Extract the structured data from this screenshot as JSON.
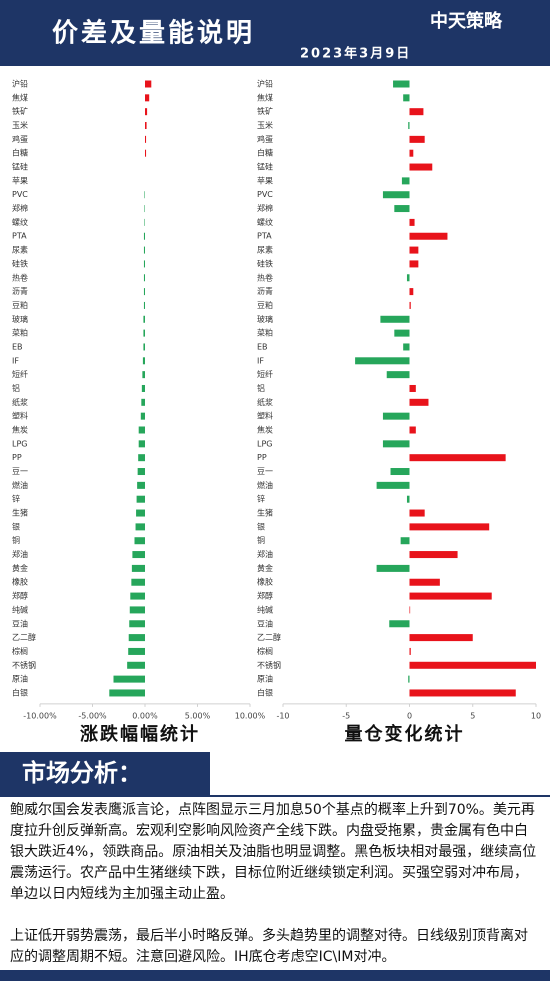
{
  "header": {
    "title": "价差及量能说明",
    "logo": "中天策略",
    "date": "2023年3月9日"
  },
  "chart_data": [
    {
      "type": "bar",
      "orientation": "horizontal",
      "title": "涨跌幅幅统计",
      "categories": [
        "沪铅",
        "焦煤",
        "铁矿",
        "玉米",
        "鸡蛋",
        "白糖",
        "锰硅",
        "苹果",
        "PVC",
        "郑棉",
        "螺纹",
        "PTA",
        "尿素",
        "硅铁",
        "热卷",
        "沥青",
        "豆粕",
        "玻璃",
        "菜粕",
        "EB",
        "IF",
        "短纤",
        "铝",
        "纸浆",
        "塑料",
        "焦炭",
        "LPG",
        "PP",
        "豆一",
        "燃油",
        "锌",
        "生猪",
        "银",
        "铜",
        "郑油",
        "黄金",
        "橡胶",
        "郑醇",
        "纯碱",
        "豆油",
        "乙二醇",
        "棕榈",
        "不锈钢",
        "原油",
        "白银"
      ],
      "values": [
        0.6,
        0.4,
        0.2,
        0.15,
        0.1,
        0.1,
        0,
        0,
        -0.05,
        -0.05,
        -0.05,
        -0.1,
        -0.1,
        -0.1,
        -0.1,
        -0.1,
        -0.1,
        -0.15,
        -0.15,
        -0.15,
        -0.2,
        -0.25,
        -0.3,
        -0.35,
        -0.4,
        -0.6,
        -0.6,
        -0.65,
        -0.7,
        -0.75,
        -0.8,
        -0.85,
        -0.9,
        -1.0,
        -1.2,
        -1.25,
        -1.3,
        -1.4,
        -1.45,
        -1.5,
        -1.55,
        -1.6,
        -1.7,
        -3.0,
        -3.4
      ],
      "positive_color": "#e8131b",
      "negative_color": "#26a65b",
      "xlim": [
        -10,
        10
      ],
      "xticks": [
        {
          "value": -10,
          "label": "-10.00%"
        },
        {
          "value": -5,
          "label": "-5.00%"
        },
        {
          "value": 0,
          "label": "0.00%"
        },
        {
          "value": 5,
          "label": "5.00%"
        },
        {
          "value": 10,
          "label": "10.00%"
        }
      ]
    },
    {
      "type": "bar",
      "orientation": "horizontal",
      "title": "量仓变化统计",
      "categories": [
        "沪铅",
        "焦煤",
        "铁矿",
        "玉米",
        "鸡蛋",
        "白糖",
        "锰硅",
        "苹果",
        "PVC",
        "郑棉",
        "螺纹",
        "PTA",
        "尿素",
        "硅铁",
        "热卷",
        "沥青",
        "豆粕",
        "玻璃",
        "菜粕",
        "EB",
        "IF",
        "短纤",
        "铝",
        "纸浆",
        "塑料",
        "焦炭",
        "LPG",
        "PP",
        "豆一",
        "燃油",
        "锌",
        "生猪",
        "银",
        "铜",
        "郑油",
        "黄金",
        "橡胶",
        "郑醇",
        "纯碱",
        "豆油",
        "乙二醇",
        "棕榈",
        "不锈钢",
        "原油",
        "白银"
      ],
      "values": [
        -1.3,
        -0.5,
        1.1,
        -0.1,
        1.2,
        0.3,
        1.8,
        -0.6,
        -2.1,
        -1.2,
        0.4,
        3.0,
        0.7,
        0.7,
        -0.2,
        0.3,
        0.1,
        -2.3,
        -1.2,
        -0.5,
        -4.3,
        -1.8,
        0.5,
        1.5,
        -2.1,
        0.5,
        -2.1,
        7.6,
        -1.5,
        -2.6,
        -0.2,
        1.2,
        6.3,
        -0.7,
        3.8,
        -2.6,
        2.4,
        6.5,
        0.05,
        -1.6,
        5.0,
        0.1,
        10.0,
        -0.1,
        8.4
      ],
      "positive_color": "#e8131b",
      "negative_color": "#26a65b",
      "xlim": [
        -10,
        10
      ],
      "xticks": [
        -10,
        -5,
        0,
        5,
        10
      ]
    }
  ],
  "analysis": {
    "title": "市场分析：",
    "paragraphs": [
      "鲍威尔国会发表鹰派言论，点阵图显示三月加息50个基点的概率上升到70%。美元再度拉升创反弹新高。宏观利空影响风险资产全线下跌。内盘受拖累，贵金属有色中白银大跌近4%，领跌商品。原油相关及油脂也明显调整。黑色板块相对最强，继续高位震荡运行。农产品中生猪继续下跌，目标位附近继续锁定利润。买强空弱对冲布局，单边以日内短线为主加强主动止盈。",
      "上证低开弱势震荡，最后半小时略反弹。多头趋势里的调整对待。日线级别顶背离对应的调整周期不短。注意回避风险。IH底仓考虑空IC\\IM对冲。"
    ]
  }
}
